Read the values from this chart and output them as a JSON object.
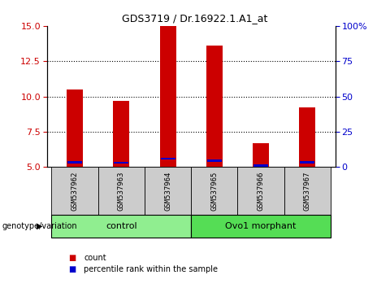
{
  "title": "GDS3719 / Dr.16922.1.A1_at",
  "samples": [
    "GSM537962",
    "GSM537963",
    "GSM537964",
    "GSM537965",
    "GSM537966",
    "GSM537967"
  ],
  "count_values": [
    10.5,
    9.7,
    15.0,
    13.6,
    6.7,
    9.2
  ],
  "percentile_values": [
    5.35,
    5.3,
    5.6,
    5.45,
    5.1,
    5.35
  ],
  "baseline": 5.0,
  "ylim": [
    5.0,
    15.0
  ],
  "yticks_left": [
    5,
    7.5,
    10,
    12.5,
    15
  ],
  "yticks_right": [
    0,
    25,
    50,
    75,
    100
  ],
  "groups": [
    {
      "label": "control",
      "samples": [
        0,
        1,
        2
      ],
      "color": "#66dd66"
    },
    {
      "label": "Ovo1 morphant",
      "samples": [
        3,
        4,
        5
      ],
      "color": "#44cc44"
    }
  ],
  "bar_color": "#cc0000",
  "percentile_color": "#0000cc",
  "bar_width": 0.35,
  "background_color": "#ffffff",
  "group_label_prefix": "genotype/variation",
  "legend_count_label": "count",
  "legend_percentile_label": "percentile rank within the sample",
  "left_axis_color": "#cc0000",
  "right_axis_color": "#0000cc",
  "grid_color": "#000000",
  "sample_box_color": "#cccccc",
  "group_box_color_light": "#90ee90",
  "group_box_color_dark": "#44dd44"
}
